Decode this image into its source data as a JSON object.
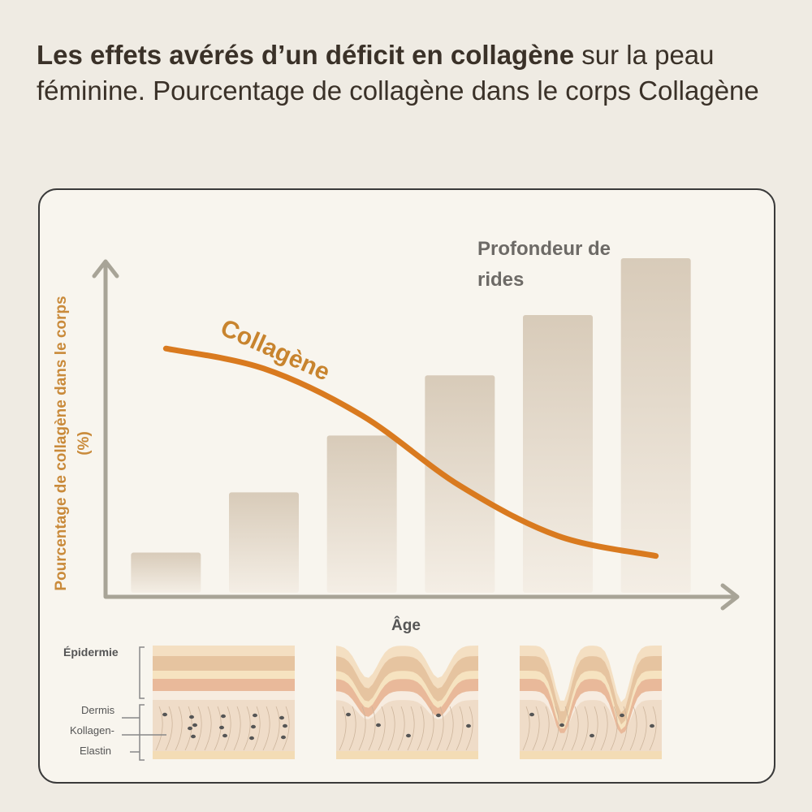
{
  "chart_data": {
    "type": "bar",
    "title": [
      "Les effets avérés d’un déficit en collagène",
      " sur la peau féminine. Pourcentage de collagène dans le corps Collagène"
    ],
    "y_label": "Pourcentage de collagène dans le corps (%)",
    "x_label": "Âge",
    "categories": [
      null,
      null,
      null,
      null,
      null,
      null
    ],
    "ylim": [
      0,
      100
    ],
    "series": [
      {
        "name": "Profondeur de rides",
        "color": "#d8cbb9",
        "values": [
          12,
          30,
          47,
          65,
          83,
          100
        ]
      },
      {
        "name": "Collagène",
        "color": "#d97a1f",
        "type": "line",
        "values": [
          73,
          67,
          53,
          32,
          17,
          11
        ]
      }
    ]
  },
  "skin": {
    "labels": [
      "Épidermie",
      "Dermis",
      "Kollagen-",
      "Elastin"
    ]
  }
}
